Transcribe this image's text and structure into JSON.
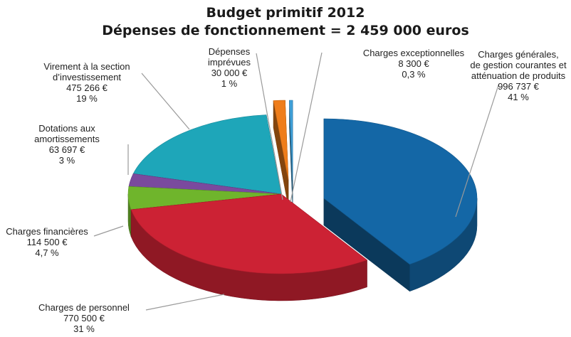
{
  "chart_data": {
    "type": "pie",
    "title": "Budget primitif 2012",
    "subtitle": "Dépenses de fonctionnement = 2 459 000 euros",
    "slices": [
      {
        "label_lines": [
          "Charges générales,",
          "de gestion courantes et",
          "atténuation de produits"
        ],
        "amount": "996 737 €",
        "percent": "41 %",
        "value": 996737,
        "color": "#1467a6",
        "exploded": true
      },
      {
        "label_lines": [
          "Charges de personnel"
        ],
        "amount": "770 500 €",
        "percent": "31 %",
        "value": 770500,
        "color": "#cc2234",
        "exploded": false
      },
      {
        "label_lines": [
          "Charges financières"
        ],
        "amount": "114 500 €",
        "percent": "4,7 %",
        "value": 114500,
        "color": "#6fb52c",
        "exploded": false
      },
      {
        "label_lines": [
          "Dotations aux",
          "amortissements"
        ],
        "amount": "63 697 €",
        "percent": "3 %",
        "value": 63697,
        "color": "#7a4a9e",
        "exploded": false
      },
      {
        "label_lines": [
          "Virement à la section",
          "d’investissement"
        ],
        "amount": "475 266 €",
        "percent": "19 %",
        "value": 475266,
        "color": "#1ea6b9",
        "exploded": false
      },
      {
        "label_lines": [
          "Dépenses",
          "imprévues"
        ],
        "amount": "30 000 €",
        "percent": "1 %",
        "value": 30000,
        "color": "#ef7d1a",
        "exploded": true
      },
      {
        "label_lines": [
          "Charges exceptionnelles"
        ],
        "amount": "8 300 €",
        "percent": "0,3 %",
        "value": 8300,
        "color": "#3fa0d8",
        "exploded": true
      }
    ]
  }
}
